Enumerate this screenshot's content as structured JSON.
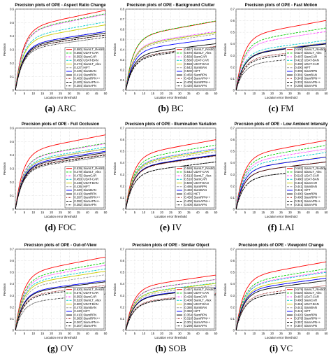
{
  "chart_data": [
    {
      "type": "line",
      "caption_letter": "(a)",
      "caption_name": "ARC",
      "title": "Precision plots of OPE - Aspect Ratio Change",
      "xlabel": "Location error threshold",
      "ylabel": "Precision",
      "xlim": [
        0,
        50
      ],
      "ylim": [
        0,
        0.6
      ],
      "xticks": [
        0,
        5,
        10,
        15,
        20,
        25,
        30,
        35,
        40,
        45,
        50
      ],
      "yticks": [
        0,
        0.1,
        0.2,
        0.3,
        0.4,
        0.5,
        0.6
      ],
      "grid": true,
      "legend_position": "bottom-right",
      "series": [
        {
          "name": "SiamLT_Res50",
          "score": "0.580",
          "color": "#ff0000",
          "dash": "solid"
        },
        {
          "name": "UDAT-CAR",
          "score": "0.555",
          "color": "#00cc00",
          "dash": "dashed"
        },
        {
          "name": "SiamCAR",
          "score": "0.550",
          "color": "#ff00ff",
          "dash": "dotted"
        },
        {
          "name": "UDAT-BAN",
          "score": "0.495",
          "color": "#00cccc",
          "dash": "dashed"
        },
        {
          "name": "SiamLT_Alex",
          "score": "0.474",
          "color": "#cccc00",
          "dash": "solid"
        },
        {
          "name": "HiFT",
          "score": "0.427",
          "color": "#999999",
          "dash": "dashed"
        },
        {
          "name": "SiamBAN",
          "score": "0.425",
          "color": "#0000ff",
          "dash": "solid"
        },
        {
          "name": "SiamRPN",
          "score": "0.414",
          "color": "#000000",
          "dash": "solid"
        },
        {
          "name": "SiamRPN++",
          "score": "0.400",
          "color": "#8b0000",
          "dash": "dotted"
        },
        {
          "name": "SiamAPN++",
          "score": "0.400",
          "color": "#000000",
          "dash": "dashed"
        },
        {
          "name": "SiamAPN",
          "score": "0.384",
          "color": "#000000",
          "dash": "dotted"
        }
      ]
    },
    {
      "type": "line",
      "caption_letter": "(b)",
      "caption_name": "BC",
      "title": "Precision plots of OPE - Background Clutter",
      "xlabel": "Location error threshold",
      "ylabel": "Precision",
      "xlim": [
        0,
        50
      ],
      "ylim": [
        0,
        0.8
      ],
      "xticks": [
        0,
        5,
        10,
        15,
        20,
        25,
        30,
        35,
        40,
        45,
        50
      ],
      "yticks": [
        0,
        0.1,
        0.2,
        0.3,
        0.4,
        0.5,
        0.6,
        0.7,
        0.8
      ],
      "grid": true,
      "legend_position": "bottom-right",
      "series": [
        {
          "name": "SiamLT_Res50",
          "score": "0.667",
          "color": "#ff0000",
          "dash": "solid"
        },
        {
          "name": "SiamLT_Alex",
          "score": "0.670",
          "color": "#00cc00",
          "dash": "dashed"
        },
        {
          "name": "SiamCAR",
          "score": "0.569",
          "color": "#ff00ff",
          "dash": "dotted"
        },
        {
          "name": "UDAT-CAR",
          "score": "0.560",
          "color": "#00cccc",
          "dash": "dashed"
        },
        {
          "name": "UDAT-BAN",
          "score": "0.558",
          "color": "#cccc00",
          "dash": "solid"
        },
        {
          "name": "SiamBAN",
          "score": "0.542",
          "color": "#999999",
          "dash": "dashed"
        },
        {
          "name": "HiFT",
          "score": "0.500",
          "color": "#0000ff",
          "dash": "solid"
        },
        {
          "name": "SiamRPN",
          "score": "0.450",
          "color": "#000000",
          "dash": "solid"
        },
        {
          "name": "SiamAPN++",
          "score": "0.424",
          "color": "#8b0000",
          "dash": "dotted"
        },
        {
          "name": "SiamRPN++",
          "score": "0.408",
          "color": "#000000",
          "dash": "dashed"
        },
        {
          "name": "SiamAPN",
          "score": "0.420",
          "color": "#000000",
          "dash": "dotted"
        }
      ]
    },
    {
      "type": "line",
      "caption_letter": "(c)",
      "caption_name": "FM",
      "title": "Precision plots of OPE - Fast Motion",
      "xlabel": "Location error threshold",
      "ylabel": "Precision",
      "xlim": [
        0,
        50
      ],
      "ylim": [
        0,
        0.7
      ],
      "xticks": [
        0,
        5,
        10,
        15,
        20,
        25,
        30,
        35,
        40,
        45,
        50
      ],
      "yticks": [
        0,
        0.1,
        0.2,
        0.3,
        0.4,
        0.5,
        0.6,
        0.7
      ],
      "grid": true,
      "legend_position": "bottom-right",
      "series": [
        {
          "name": "SiamLT_Res50",
          "score": "0.590",
          "color": "#ff0000",
          "dash": "solid"
        },
        {
          "name": "SiamLT_Alex",
          "score": "0.527",
          "color": "#00cc00",
          "dash": "dashed"
        },
        {
          "name": "SiamCAR",
          "score": "0.497",
          "color": "#ff00ff",
          "dash": "dotted"
        },
        {
          "name": "UDAT-BAN",
          "score": "0.422",
          "color": "#00cccc",
          "dash": "dashed"
        },
        {
          "name": "UDAT-CAR",
          "score": "0.400",
          "color": "#cccc00",
          "dash": "solid"
        },
        {
          "name": "HiFT",
          "score": "0.400",
          "color": "#999999",
          "dash": "dashed"
        },
        {
          "name": "SiamRPN",
          "score": "0.395",
          "color": "#0000ff",
          "dash": "solid"
        },
        {
          "name": "SiamBAN",
          "score": "0.391",
          "color": "#000000",
          "dash": "solid"
        },
        {
          "name": "SiamRPN++",
          "score": "0.349",
          "color": "#8b0000",
          "dash": "dotted"
        },
        {
          "name": "SiamAPN++",
          "score": "0.332",
          "color": "#000000",
          "dash": "dashed"
        },
        {
          "name": "SiamAPN",
          "score": "0.288",
          "color": "#000000",
          "dash": "dotted"
        }
      ]
    },
    {
      "type": "line",
      "caption_letter": "(d)",
      "caption_name": "FOC",
      "title": "Precision plots of OPE - Full Occlusion",
      "xlabel": "Location error threshold",
      "ylabel": "Precision",
      "xlim": [
        0,
        50
      ],
      "ylim": [
        0,
        0.6
      ],
      "xticks": [
        0,
        5,
        10,
        15,
        20,
        25,
        30,
        35,
        40,
        45,
        50
      ],
      "yticks": [
        0,
        0.1,
        0.2,
        0.3,
        0.4,
        0.5,
        0.6
      ],
      "grid": true,
      "legend_position": "bottom-right",
      "series": [
        {
          "name": "SiamLT_Res50",
          "score": "0.539",
          "color": "#ff0000",
          "dash": "solid"
        },
        {
          "name": "SiamLT_Alex",
          "score": "0.479",
          "color": "#00cc00",
          "dash": "dashed"
        },
        {
          "name": "SiamCAR",
          "score": "0.475",
          "color": "#ff00ff",
          "dash": "dotted"
        },
        {
          "name": "UDAT-CAR",
          "score": "0.450",
          "color": "#00cccc",
          "dash": "dashed"
        },
        {
          "name": "UDAT-BAN",
          "score": "0.438",
          "color": "#cccc00",
          "dash": "solid"
        },
        {
          "name": "HiFT",
          "score": "0.436",
          "color": "#999999",
          "dash": "dashed"
        },
        {
          "name": "SiamBAN",
          "score": "0.420",
          "color": "#0000ff",
          "dash": "solid"
        },
        {
          "name": "SiamRPN",
          "score": "0.410",
          "color": "#000000",
          "dash": "solid"
        },
        {
          "name": "SiamRPN++",
          "score": "0.397",
          "color": "#8b0000",
          "dash": "dotted"
        },
        {
          "name": "SiamAPN++",
          "score": "0.392",
          "color": "#000000",
          "dash": "dashed"
        },
        {
          "name": "SiamAPN",
          "score": "0.382",
          "color": "#000000",
          "dash": "dotted"
        }
      ]
    },
    {
      "type": "line",
      "caption_letter": "(e)",
      "caption_name": "IV",
      "title": "Precision plots of OPE - Illumination Variation",
      "xlabel": "Location error threshold",
      "ylabel": "Precision",
      "xlim": [
        0,
        50
      ],
      "ylim": [
        0,
        0.7
      ],
      "xticks": [
        0,
        5,
        10,
        15,
        20,
        25,
        30,
        35,
        40,
        45,
        50
      ],
      "yticks": [
        0,
        0.1,
        0.2,
        0.3,
        0.4,
        0.5,
        0.6,
        0.7
      ],
      "grid": true,
      "legend_position": "bottom-right",
      "series": [
        {
          "name": "SiamLT_Res50",
          "score": "0.588",
          "color": "#ff0000",
          "dash": "solid"
        },
        {
          "name": "UDAT-CAR",
          "score": "0.542",
          "color": "#00cc00",
          "dash": "dashed"
        },
        {
          "name": "SiamLT_Alex",
          "score": "0.513",
          "color": "#ff00ff",
          "dash": "dotted"
        },
        {
          "name": "SiamCAR",
          "score": "0.510",
          "color": "#00cccc",
          "dash": "dashed"
        },
        {
          "name": "UDAT-BAN",
          "score": "0.500",
          "color": "#cccc00",
          "dash": "solid"
        },
        {
          "name": "SiamRPN",
          "score": "0.486",
          "color": "#999999",
          "dash": "dashed"
        },
        {
          "name": "SiamBAN",
          "score": "0.460",
          "color": "#0000ff",
          "dash": "solid"
        },
        {
          "name": "HiFT",
          "score": "0.455",
          "color": "#000000",
          "dash": "solid"
        },
        {
          "name": "SiamRPN++",
          "score": "0.450",
          "color": "#8b0000",
          "dash": "dotted"
        },
        {
          "name": "SiamAPN++",
          "score": "0.400",
          "color": "#000000",
          "dash": "dashed"
        },
        {
          "name": "SiamAPN",
          "score": "0.400",
          "color": "#000000",
          "dash": "dotted"
        }
      ]
    },
    {
      "type": "line",
      "caption_letter": "(f)",
      "caption_name": "LAI",
      "title": "Precision plots of OPE - Low Ambient Intensity",
      "xlabel": "Location error threshold",
      "ylabel": "Precision",
      "xlim": [
        0,
        50
      ],
      "ylim": [
        0,
        0.7
      ],
      "xticks": [
        0,
        5,
        10,
        15,
        20,
        25,
        30,
        35,
        40,
        45,
        50
      ],
      "yticks": [
        0,
        0.1,
        0.2,
        0.3,
        0.4,
        0.5,
        0.6,
        0.7
      ],
      "grid": true,
      "legend_position": "bottom-right",
      "series": [
        {
          "name": "SiamLT_Res50",
          "score": "0.582",
          "color": "#ff0000",
          "dash": "solid"
        },
        {
          "name": "SiamLT_Alex",
          "score": "0.540",
          "color": "#00cc00",
          "dash": "dashed"
        },
        {
          "name": "UDAT-CAR",
          "score": "0.510",
          "color": "#ff00ff",
          "dash": "dotted"
        },
        {
          "name": "UDAT-BAN",
          "score": "0.480",
          "color": "#00cccc",
          "dash": "dashed"
        },
        {
          "name": "SiamCAR",
          "score": "0.443",
          "color": "#cccc00",
          "dash": "solid"
        },
        {
          "name": "SiamBAN",
          "score": "0.441",
          "color": "#999999",
          "dash": "dashed"
        },
        {
          "name": "HiFT",
          "score": "0.441",
          "color": "#0000ff",
          "dash": "solid"
        },
        {
          "name": "SiamRPN",
          "score": "0.400",
          "color": "#000000",
          "dash": "solid"
        },
        {
          "name": "SiamRPN++",
          "score": "0.400",
          "color": "#8b0000",
          "dash": "dotted"
        },
        {
          "name": "SiamAPN++",
          "score": "0.341",
          "color": "#000000",
          "dash": "dashed"
        },
        {
          "name": "SiamAPN",
          "score": "0.341",
          "color": "#000000",
          "dash": "dotted"
        }
      ]
    },
    {
      "type": "line",
      "caption_letter": "(g)",
      "caption_name": "OV",
      "title": "Precision plots of OPE - Out-of-View",
      "xlabel": "Location error threshold",
      "ylabel": "Precision",
      "xlim": [
        0,
        50
      ],
      "ylim": [
        0,
        0.7
      ],
      "xticks": [
        0,
        5,
        10,
        15,
        20,
        25,
        30,
        35,
        40,
        45,
        50
      ],
      "yticks": [
        0,
        0.1,
        0.2,
        0.3,
        0.4,
        0.5,
        0.6,
        0.7
      ],
      "grid": true,
      "legend_position": "bottom-right",
      "series": [
        {
          "name": "SiamLT_Res50",
          "score": "0.620",
          "color": "#ff0000",
          "dash": "solid"
        },
        {
          "name": "UDAT-CAR",
          "score": "0.571",
          "color": "#00cc00",
          "dash": "dashed"
        },
        {
          "name": "SiamCAR",
          "score": "0.550",
          "color": "#ff00ff",
          "dash": "dotted"
        },
        {
          "name": "SiamLT_Alex",
          "score": "0.520",
          "color": "#00cccc",
          "dash": "dashed"
        },
        {
          "name": "UDAT-BAN",
          "score": "0.500",
          "color": "#cccc00",
          "dash": "solid"
        },
        {
          "name": "SiamBAN",
          "score": "0.470",
          "color": "#999999",
          "dash": "dashed"
        },
        {
          "name": "HiFT",
          "score": "0.420",
          "color": "#0000ff",
          "dash": "solid"
        },
        {
          "name": "SiamRPN",
          "score": "0.410",
          "color": "#000000",
          "dash": "solid"
        },
        {
          "name": "SiamRPN++",
          "score": "0.380",
          "color": "#8b0000",
          "dash": "dotted"
        },
        {
          "name": "SiamAPN++",
          "score": "0.367",
          "color": "#000000",
          "dash": "dashed"
        },
        {
          "name": "SiamAPN",
          "score": "0.307",
          "color": "#000000",
          "dash": "dotted"
        }
      ]
    },
    {
      "type": "line",
      "caption_letter": "(h)",
      "caption_name": "SOB",
      "title": "Precision plots of OPE - Similar Object",
      "xlabel": "Location error threshold",
      "ylabel": "Precision",
      "xlim": [
        0,
        50
      ],
      "ylim": [
        0,
        0.7
      ],
      "xticks": [
        0,
        5,
        10,
        15,
        20,
        25,
        30,
        35,
        40,
        45,
        50
      ],
      "yticks": [
        0,
        0.1,
        0.2,
        0.3,
        0.4,
        0.5,
        0.6,
        0.7
      ],
      "grid": true,
      "legend_position": "bottom-right",
      "series": [
        {
          "name": "SiamLT_Res50",
          "score": "0.467",
          "color": "#ff0000",
          "dash": "solid"
        },
        {
          "name": "UDAT-CAR",
          "score": "0.430",
          "color": "#00cc00",
          "dash": "dashed"
        },
        {
          "name": "SiamCAR",
          "score": "0.429",
          "color": "#ff00ff",
          "dash": "dotted"
        },
        {
          "name": "SiamLT_Alex",
          "score": "0.400",
          "color": "#00cccc",
          "dash": "dashed"
        },
        {
          "name": "UDAT-BAN",
          "score": "0.396",
          "color": "#cccc00",
          "dash": "solid"
        },
        {
          "name": "SiamBAN",
          "score": "0.380",
          "color": "#999999",
          "dash": "dashed"
        },
        {
          "name": "HiFT",
          "score": "0.360",
          "color": "#0000ff",
          "dash": "solid"
        },
        {
          "name": "SiamRPN",
          "score": "0.354",
          "color": "#000000",
          "dash": "solid"
        },
        {
          "name": "SiamRPN++",
          "score": "0.310",
          "color": "#8b0000",
          "dash": "dotted"
        },
        {
          "name": "SiamAPN++",
          "score": "0.301",
          "color": "#000000",
          "dash": "dashed"
        },
        {
          "name": "SiamAPN",
          "score": "0.298",
          "color": "#000000",
          "dash": "dotted"
        }
      ]
    },
    {
      "type": "line",
      "caption_letter": "(i)",
      "caption_name": "VC",
      "title": "Precision plots of OPE - Viewpoint Change",
      "xlabel": "Location error threshold",
      "ylabel": "Precision",
      "xlim": [
        0,
        50
      ],
      "ylim": [
        0,
        0.7
      ],
      "xticks": [
        0,
        5,
        10,
        15,
        20,
        25,
        30,
        35,
        40,
        45,
        50
      ],
      "yticks": [
        0,
        0.1,
        0.2,
        0.3,
        0.4,
        0.5,
        0.6,
        0.7
      ],
      "grid": true,
      "legend_position": "bottom-right",
      "series": [
        {
          "name": "SiamLT_Res50",
          "score": "0.579",
          "color": "#ff0000",
          "dash": "solid"
        },
        {
          "name": "SiamLT_Alex",
          "score": "0.520",
          "color": "#00cc00",
          "dash": "dashed"
        },
        {
          "name": "UDAT-CAR",
          "score": "0.497",
          "color": "#ff00ff",
          "dash": "dotted"
        },
        {
          "name": "SiamCAR",
          "score": "0.490",
          "color": "#00cccc",
          "dash": "dashed"
        },
        {
          "name": "UDAT-BAN",
          "score": "0.461",
          "color": "#cccc00",
          "dash": "solid"
        },
        {
          "name": "SiamBAN",
          "score": "0.441",
          "color": "#999999",
          "dash": "dashed"
        },
        {
          "name": "HiFT",
          "score": "0.441",
          "color": "#0000ff",
          "dash": "solid"
        },
        {
          "name": "SiamRPN",
          "score": "0.420",
          "color": "#000000",
          "dash": "solid"
        },
        {
          "name": "SiamRPN++",
          "score": "0.378",
          "color": "#8b0000",
          "dash": "dotted"
        },
        {
          "name": "SiamAPN++",
          "score": "0.357",
          "color": "#000000",
          "dash": "dashed"
        },
        {
          "name": "SiamAPN",
          "score": "0.357",
          "color": "#000000",
          "dash": "dotted"
        }
      ]
    }
  ]
}
